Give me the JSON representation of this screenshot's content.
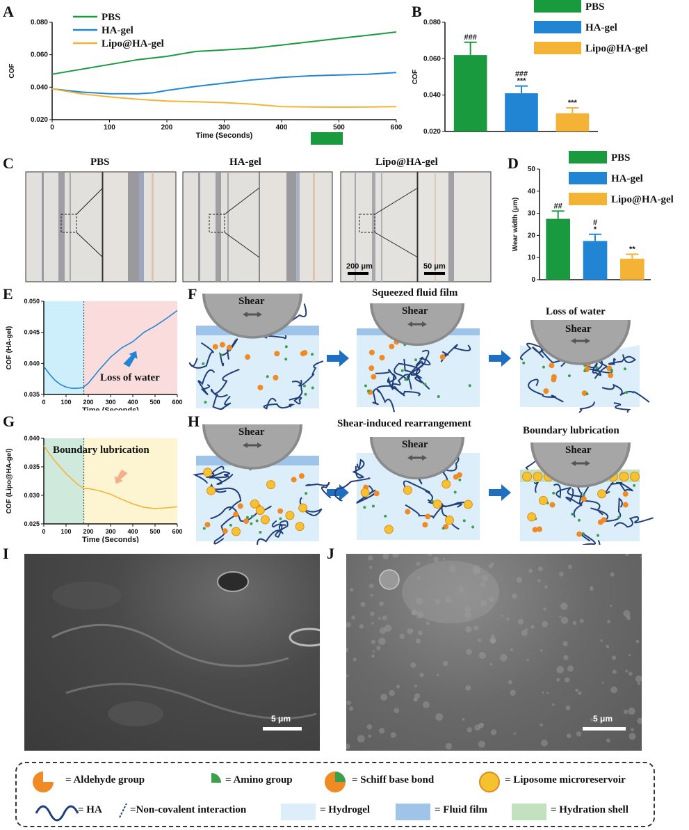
{
  "panel_labels": {
    "a": "A",
    "b": "B",
    "c": "C",
    "d": "D",
    "e": "E",
    "f": "F",
    "g": "G",
    "h": "H",
    "i": "I",
    "j": "J"
  },
  "colors": {
    "pbs": "#1a9a3f",
    "ha": "#2185d4",
    "lipo": "#f5b335",
    "hydrogel": "#dceefa",
    "fluid": "#9fc4ea",
    "hydration": "#c2e2bf",
    "chain": "#1f3d78",
    "shear": "#888888"
  },
  "chart_data": [
    {
      "type": "line",
      "panel": "A",
      "xlabel": "Time (Seconds)",
      "ylabel": "COF",
      "xlim": [
        0,
        600
      ],
      "ylim": [
        0.02,
        0.08
      ],
      "xticks": [
        "0",
        "100",
        "200",
        "300",
        "400",
        "500",
        "600"
      ],
      "yticks": [
        "0.020",
        "0.040",
        "0.060",
        "0.080"
      ],
      "legend_position": "top-left",
      "series": [
        {
          "name": "PBS",
          "color": "#1a9a3f",
          "x": [
            0,
            50,
            100,
            150,
            200,
            250,
            300,
            350,
            400,
            450,
            500,
            550,
            600
          ],
          "y": [
            0.048,
            0.051,
            0.054,
            0.057,
            0.059,
            0.062,
            0.063,
            0.064,
            0.066,
            0.068,
            0.07,
            0.072,
            0.074
          ]
        },
        {
          "name": "HA-gel",
          "color": "#2185d4",
          "x": [
            0,
            50,
            100,
            150,
            175,
            200,
            250,
            300,
            350,
            400,
            450,
            500,
            550,
            600
          ],
          "y": [
            0.039,
            0.037,
            0.036,
            0.036,
            0.0365,
            0.038,
            0.0405,
            0.0425,
            0.0445,
            0.046,
            0.047,
            0.0475,
            0.048,
            0.049
          ]
        },
        {
          "name": "Lipo@HA-gel",
          "color": "#f5b335",
          "x": [
            0,
            50,
            100,
            150,
            200,
            250,
            300,
            350,
            400,
            450,
            500,
            550,
            600
          ],
          "y": [
            0.039,
            0.036,
            0.034,
            0.0325,
            0.0315,
            0.031,
            0.0305,
            0.0295,
            0.028,
            0.0278,
            0.0277,
            0.0278,
            0.028
          ]
        }
      ]
    },
    {
      "type": "bar",
      "panel": "B",
      "ylabel": "COF",
      "ylim": [
        0.02,
        0.08
      ],
      "yticks": [
        "0.020",
        "0.040",
        "0.060",
        "0.080"
      ],
      "legend_position": "top-right",
      "categories": [
        "PBS",
        "HA-gel",
        "Lipo@HA-gel"
      ],
      "values": [
        0.062,
        0.041,
        0.03
      ],
      "errors": [
        0.007,
        0.004,
        0.003
      ],
      "annotations": [
        [
          "###"
        ],
        [
          "###",
          "***"
        ],
        [
          "***"
        ]
      ],
      "colors": [
        "#1a9a3f",
        "#2185d4",
        "#f5b335"
      ]
    },
    {
      "type": "bar",
      "panel": "D",
      "ylabel": "Wear width (μm)",
      "ylim": [
        0,
        50
      ],
      "yticks": [
        "0",
        "10",
        "20",
        "30",
        "40",
        "50"
      ],
      "legend_position": "top-right",
      "categories": [
        "PBS",
        "HA-gel",
        "Lipo@HA-gel"
      ],
      "values": [
        27.5,
        17.5,
        9.5
      ],
      "errors": [
        3.5,
        3.0,
        2.0
      ],
      "annotations": [
        [
          "##"
        ],
        [
          "#",
          "*"
        ],
        [
          "**"
        ]
      ],
      "colors": [
        "#1a9a3f",
        "#2185d4",
        "#f5b335"
      ]
    },
    {
      "type": "line",
      "panel": "E",
      "xlabel": "Time (Seconds)",
      "ylabel": "COF (HA-gel)",
      "xlim": [
        0,
        600
      ],
      "ylim": [
        0.035,
        0.05
      ],
      "xticks": [
        "0",
        "100",
        "200",
        "300",
        "400",
        "500",
        "600"
      ],
      "yticks": [
        "0.035",
        "0.040",
        "0.045",
        "0.050"
      ],
      "series": [
        {
          "color": "#2185d4",
          "x": [
            0,
            25,
            50,
            75,
            100,
            125,
            150,
            175,
            200,
            250,
            300,
            350,
            400,
            450,
            500,
            550,
            600
          ],
          "y": [
            0.0395,
            0.0383,
            0.0373,
            0.0366,
            0.0362,
            0.036,
            0.036,
            0.0361,
            0.0368,
            0.039,
            0.041,
            0.0425,
            0.0435,
            0.045,
            0.046,
            0.0472,
            0.0485
          ]
        }
      ],
      "annotation": "Loss of water"
    },
    {
      "type": "line",
      "panel": "G",
      "xlabel": "Time (Seconds)",
      "ylabel": "COF (Lipo@HA-gel)",
      "xlim": [
        0,
        600
      ],
      "ylim": [
        0.025,
        0.04
      ],
      "xticks": [
        "0",
        "100",
        "200",
        "300",
        "400",
        "500",
        "600"
      ],
      "yticks": [
        "0.025",
        "0.030",
        "0.035",
        "0.040"
      ],
      "series": [
        {
          "color": "#f5b335",
          "x": [
            0,
            25,
            50,
            100,
            150,
            180,
            200,
            250,
            300,
            350,
            400,
            450,
            500,
            550,
            600
          ],
          "y": [
            0.0387,
            0.0373,
            0.036,
            0.0338,
            0.032,
            0.0312,
            0.0312,
            0.0308,
            0.0302,
            0.0293,
            0.0285,
            0.0279,
            0.0277,
            0.0278,
            0.028
          ]
        }
      ],
      "annotation": "Boundary lubrication"
    }
  ],
  "panel_c": {
    "titles": [
      "PBS",
      "HA-gel",
      "Lipo@HA-gel"
    ],
    "scale_left": "200 μm",
    "scale_right": "50 μm"
  },
  "panel_f": {
    "shear": "Shear",
    "caption_mid": "Squeezed fluid film",
    "caption_right": "Loss of water"
  },
  "panel_h": {
    "shear": "Shear",
    "caption_mid": "Shear-induced  rearrangement",
    "caption_right": "Boundary lubrication"
  },
  "panel_i": {
    "scale": "5 μm"
  },
  "panel_j": {
    "scale": "5 μm"
  },
  "legend_box": {
    "aldehyde": "= Aldehyde group",
    "amino": "= Amino group",
    "schiff": "=   Schiff base bond",
    "liposome": "= Liposome microreservoir",
    "ha": "= HA",
    "noncov": "=Non-covalent interaction",
    "hydrogel": "=  Hydrogel",
    "fluid": "=  Fluid film",
    "hydration": "= Hydration shell"
  }
}
